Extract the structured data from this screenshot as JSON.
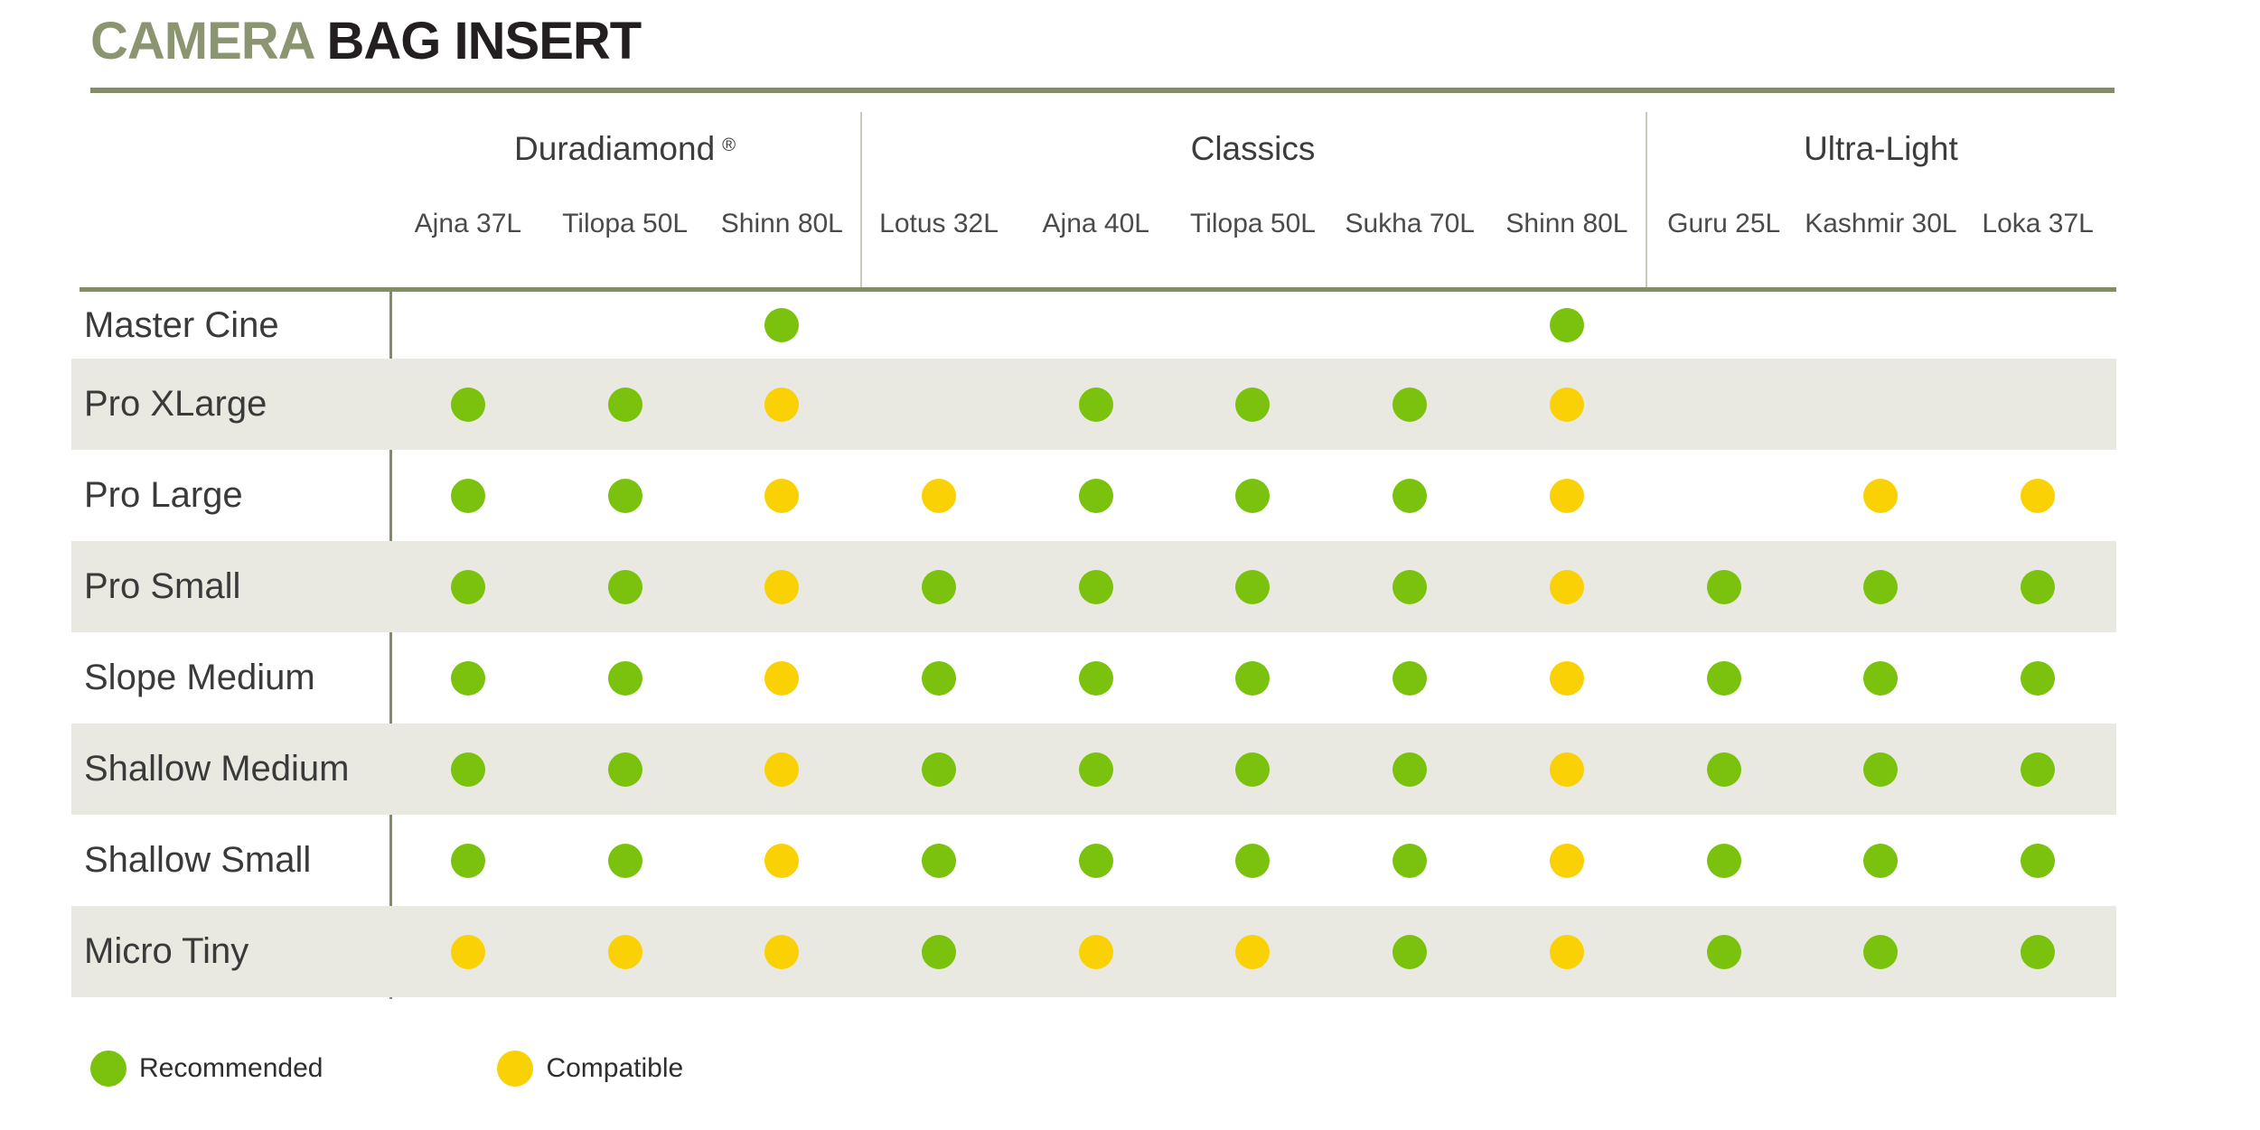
{
  "title": {
    "accent": "CAMERA",
    "rest": "BAG INSERT"
  },
  "colors": {
    "olive_title": "#8C9572",
    "olive_rule": "#828C66",
    "divider": "#C9C9BD",
    "stripe": "#E9E9E2",
    "ink": "#231F20",
    "dot_recommended": "#7AC20D",
    "dot_compatible": "#FAD105"
  },
  "chart_data": {
    "type": "table",
    "title": "CAMERA BAG INSERT",
    "legend": [
      {
        "value": "R",
        "label": "Recommended"
      },
      {
        "value": "C",
        "label": "Compatible"
      }
    ],
    "groups": [
      {
        "name": "Duradiamond",
        "registered_mark": "®",
        "span": 3
      },
      {
        "name": "Classics",
        "registered_mark": "",
        "span": 5
      },
      {
        "name": "Ultra-Light",
        "registered_mark": "",
        "span": 3
      }
    ],
    "columns": [
      "Ajna 37L",
      "Tilopa 50L",
      "Shinn 80L",
      "Lotus 32L",
      "Ajna 40L",
      "Tilopa 50L",
      "Sukha 70L",
      "Shinn 80L",
      "Guru 25L",
      "Kashmir 30L",
      "Loka 37L"
    ],
    "rows": [
      {
        "label": "Master Cine",
        "cells": [
          "",
          "",
          "R",
          "",
          "",
          "",
          "",
          "R",
          "",
          "",
          ""
        ]
      },
      {
        "label": "Pro XLarge",
        "cells": [
          "R",
          "R",
          "C",
          "",
          "R",
          "R",
          "R",
          "C",
          "",
          "",
          ""
        ]
      },
      {
        "label": "Pro Large",
        "cells": [
          "R",
          "R",
          "C",
          "C",
          "R",
          "R",
          "R",
          "C",
          "",
          "C",
          "C"
        ]
      },
      {
        "label": "Pro Small",
        "cells": [
          "R",
          "R",
          "C",
          "R",
          "R",
          "R",
          "R",
          "C",
          "R",
          "R",
          "R"
        ]
      },
      {
        "label": "Slope Medium",
        "cells": [
          "R",
          "R",
          "C",
          "R",
          "R",
          "R",
          "R",
          "C",
          "R",
          "R",
          "R"
        ]
      },
      {
        "label": "Shallow Medium",
        "cells": [
          "R",
          "R",
          "C",
          "R",
          "R",
          "R",
          "R",
          "C",
          "R",
          "R",
          "R"
        ]
      },
      {
        "label": "Shallow Small",
        "cells": [
          "R",
          "R",
          "C",
          "R",
          "R",
          "R",
          "R",
          "C",
          "R",
          "R",
          "R"
        ]
      },
      {
        "label": "Micro Tiny",
        "cells": [
          "C",
          "C",
          "C",
          "R",
          "C",
          "C",
          "R",
          "C",
          "R",
          "R",
          "R"
        ]
      }
    ]
  }
}
